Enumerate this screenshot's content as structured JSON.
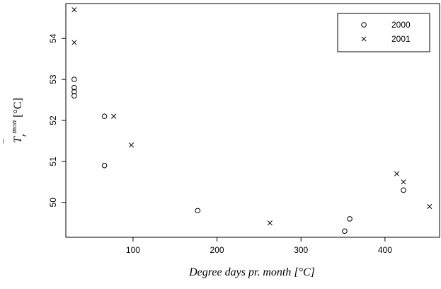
{
  "chart_data": {
    "type": "scatter",
    "xlabel": "Degree days pr. month [°C]",
    "ylabel_parts": {
      "base": "T",
      "bar": "‾",
      "sup": "mon",
      "sub": "r",
      "unit": " [°C]"
    },
    "xlim": [
      20,
      465
    ],
    "ylim": [
      49.15,
      54.85
    ],
    "x_ticks": [
      100,
      200,
      300,
      400
    ],
    "y_ticks": [
      50,
      51,
      52,
      53,
      54
    ],
    "grid": false,
    "legend_position": "top-right",
    "series": [
      {
        "name": "2000",
        "marker": "o",
        "points": [
          {
            "x": 30,
            "y": 53.0
          },
          {
            "x": 30,
            "y": 52.8
          },
          {
            "x": 30,
            "y": 52.7
          },
          {
            "x": 30,
            "y": 52.6
          },
          {
            "x": 66,
            "y": 52.1
          },
          {
            "x": 66,
            "y": 50.9
          },
          {
            "x": 177,
            "y": 49.8
          },
          {
            "x": 352,
            "y": 49.3
          },
          {
            "x": 358,
            "y": 49.6
          },
          {
            "x": 422,
            "y": 50.3
          }
        ]
      },
      {
        "name": "2001",
        "marker": "x",
        "points": [
          {
            "x": 30,
            "y": 54.7
          },
          {
            "x": 30,
            "y": 53.9
          },
          {
            "x": 77,
            "y": 52.1
          },
          {
            "x": 98,
            "y": 51.4
          },
          {
            "x": 263,
            "y": 49.5
          },
          {
            "x": 414,
            "y": 50.7
          },
          {
            "x": 422,
            "y": 50.5
          },
          {
            "x": 453,
            "y": 49.9
          }
        ]
      }
    ]
  }
}
